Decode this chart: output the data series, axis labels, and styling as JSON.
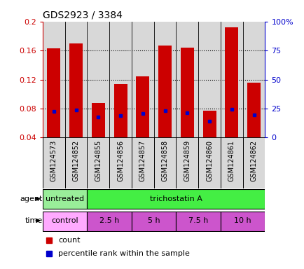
{
  "title": "GDS2923 / 3384",
  "samples": [
    "GSM124573",
    "GSM124852",
    "GSM124855",
    "GSM124856",
    "GSM124857",
    "GSM124858",
    "GSM124859",
    "GSM124860",
    "GSM124861",
    "GSM124862"
  ],
  "count_values": [
    0.163,
    0.17,
    0.088,
    0.114,
    0.124,
    0.167,
    0.164,
    0.077,
    0.192,
    0.116
  ],
  "percentile_values": [
    0.076,
    0.078,
    0.068,
    0.07,
    0.073,
    0.077,
    0.074,
    0.063,
    0.079,
    0.071
  ],
  "bar_bottom": 0.04,
  "ylim_left": [
    0.04,
    0.2
  ],
  "ylim_right": [
    0,
    100
  ],
  "yticks_left": [
    0.04,
    0.08,
    0.12,
    0.16,
    0.2
  ],
  "yticks_right": [
    0,
    25,
    50,
    75,
    100
  ],
  "ytick_labels_left": [
    "0.04",
    "0.08",
    "0.12",
    "0.16",
    "0.2"
  ],
  "ytick_labels_right": [
    "0",
    "25",
    "50",
    "75",
    "100%"
  ],
  "bar_color": "#cc0000",
  "dot_color": "#0000cc",
  "col_bg_color": "#d8d8d8",
  "agent_segments": [
    {
      "label": "untreated",
      "start": 0,
      "end": 2,
      "color": "#99ee99"
    },
    {
      "label": "trichostatin A",
      "start": 2,
      "end": 10,
      "color": "#44ee44"
    }
  ],
  "time_segments": [
    {
      "label": "control",
      "start": 0,
      "end": 2,
      "color": "#ffaaff"
    },
    {
      "label": "2.5 h",
      "start": 2,
      "end": 4,
      "color": "#cc55cc"
    },
    {
      "label": "5 h",
      "start": 4,
      "end": 6,
      "color": "#cc55cc"
    },
    {
      "label": "7.5 h",
      "start": 6,
      "end": 8,
      "color": "#cc55cc"
    },
    {
      "label": "10 h",
      "start": 8,
      "end": 10,
      "color": "#cc55cc"
    }
  ],
  "agent_label": "agent",
  "time_label": "time",
  "legend_count": "count",
  "legend_percentile": "percentile rank within the sample",
  "bg_color": "#ffffff",
  "label_color_left": "#cc0000",
  "label_color_right": "#0000cc",
  "n_samples": 10
}
